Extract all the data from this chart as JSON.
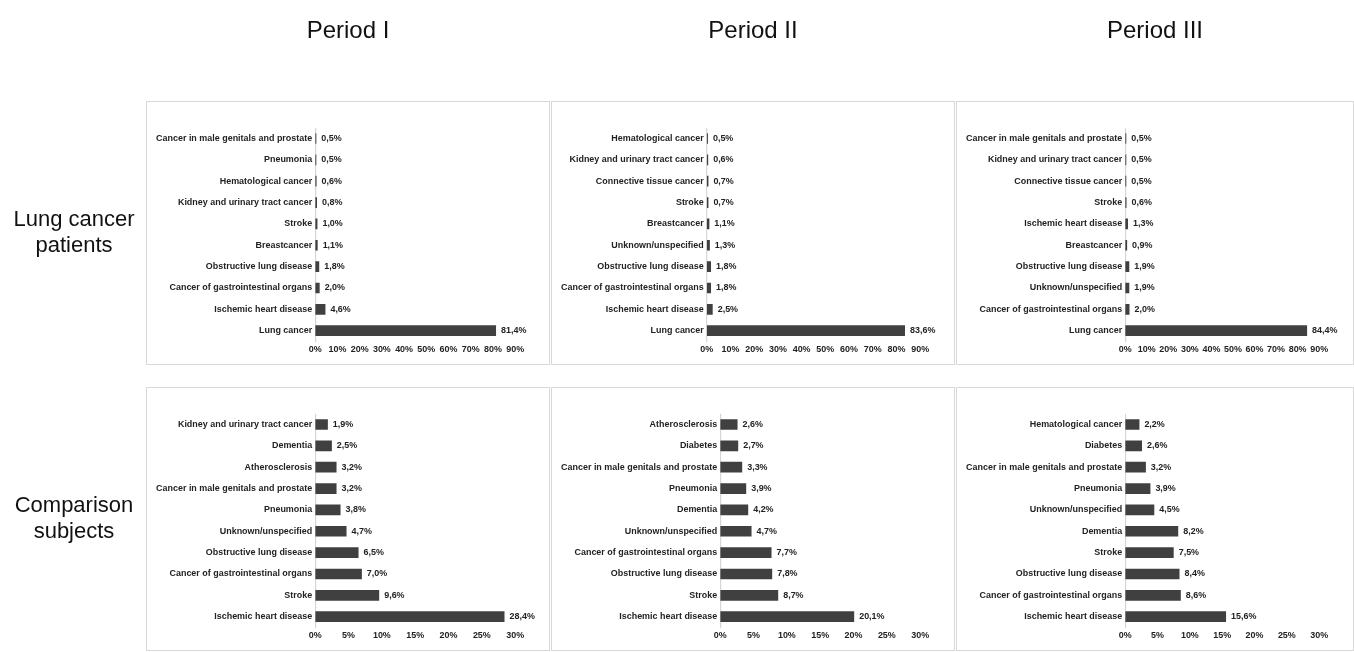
{
  "chart_data": [
    {
      "type": "bar",
      "orientation": "horizontal",
      "title": "Period I",
      "ylabel": "Lung cancer patients",
      "categories": [
        "Cancer in male genitals and prostate",
        "Pneumonia",
        "Hematological cancer",
        "Kidney and urinary tract cancer",
        "Stroke",
        "Breastcancer",
        "Obstructive lung disease",
        "Cancer of gastrointestinal organs",
        "Ischemic heart disease",
        "Lung cancer"
      ],
      "values": [
        0.5,
        0.5,
        0.6,
        0.8,
        1.0,
        1.1,
        1.8,
        2.0,
        4.6,
        81.4
      ],
      "value_labels": [
        "0,5%",
        "0,5%",
        "0,6%",
        "0,8%",
        "1,0%",
        "1,1%",
        "1,8%",
        "2,0%",
        "4,6%",
        "81,4%"
      ],
      "color": "#404040",
      "xlim": [
        0,
        90
      ],
      "xticks": [
        {
          "value": 0,
          "label": "0%"
        },
        {
          "value": 10,
          "label": "10%"
        },
        {
          "value": 20,
          "label": "20%"
        },
        {
          "value": 30,
          "label": "30%"
        },
        {
          "value": 40,
          "label": "40%"
        },
        {
          "value": 50,
          "label": "50%"
        },
        {
          "value": 60,
          "label": "60%"
        },
        {
          "value": 70,
          "label": "70%"
        },
        {
          "value": 80,
          "label": "80%"
        },
        {
          "value": 90,
          "label": "90%"
        }
      ],
      "grid": false,
      "legend": false
    },
    {
      "type": "bar",
      "orientation": "horizontal",
      "title": "Period II",
      "categories": [
        "Hematological cancer",
        "Kidney and urinary tract cancer",
        "Connective tissue cancer",
        "Stroke",
        "Breastcancer",
        "Unknown/unspecified",
        "Obstructive lung disease",
        "Cancer of gastrointestinal organs",
        "Ischemic heart disease",
        "Lung cancer"
      ],
      "values": [
        0.5,
        0.6,
        0.7,
        0.7,
        1.1,
        1.3,
        1.8,
        1.8,
        2.5,
        83.6
      ],
      "value_labels": [
        "0,5%",
        "0,6%",
        "0,7%",
        "0,7%",
        "1,1%",
        "1,3%",
        "1,8%",
        "1,8%",
        "2,5%",
        "83,6%"
      ],
      "color": "#404040",
      "xlim": [
        0,
        90
      ],
      "xticks": [
        {
          "value": 0,
          "label": "0%"
        },
        {
          "value": 10,
          "label": "10%"
        },
        {
          "value": 20,
          "label": "20%"
        },
        {
          "value": 30,
          "label": "30%"
        },
        {
          "value": 40,
          "label": "40%"
        },
        {
          "value": 50,
          "label": "50%"
        },
        {
          "value": 60,
          "label": "60%"
        },
        {
          "value": 70,
          "label": "70%"
        },
        {
          "value": 80,
          "label": "80%"
        },
        {
          "value": 90,
          "label": "90%"
        }
      ],
      "grid": false,
      "legend": false
    },
    {
      "type": "bar",
      "orientation": "horizontal",
      "title": "Period III",
      "categories": [
        "Cancer in male genitals and prostate",
        "Kidney and urinary tract cancer",
        "Connective tissue cancer",
        "Stroke",
        "Ischemic heart disease",
        "Breastcancer",
        "Obstructive lung disease",
        "Unknown/unspecified",
        "Cancer of gastrointestinal organs",
        "Lung cancer"
      ],
      "values": [
        0.5,
        0.5,
        0.5,
        0.6,
        1.3,
        0.9,
        1.9,
        1.9,
        2.0,
        84.4
      ],
      "value_labels": [
        "0,5%",
        "0,5%",
        "0,5%",
        "0,6%",
        "1,3%",
        "0,9%",
        "1,9%",
        "1,9%",
        "2,0%",
        "84,4%"
      ],
      "color": "#404040",
      "xlim": [
        0,
        90
      ],
      "xticks": [
        {
          "value": 0,
          "label": "0%"
        },
        {
          "value": 10,
          "label": "10%"
        },
        {
          "value": 20,
          "label": "20%"
        },
        {
          "value": 30,
          "label": "30%"
        },
        {
          "value": 40,
          "label": "40%"
        },
        {
          "value": 50,
          "label": "50%"
        },
        {
          "value": 60,
          "label": "60%"
        },
        {
          "value": 70,
          "label": "70%"
        },
        {
          "value": 80,
          "label": "80%"
        },
        {
          "value": 90,
          "label": "90%"
        }
      ],
      "grid": false,
      "legend": false
    },
    {
      "type": "bar",
      "orientation": "horizontal",
      "ylabel": "Comparison subjects",
      "categories": [
        "Kidney and urinary tract cancer",
        "Dementia",
        "Atherosclerosis",
        "Cancer in male genitals and prostate",
        "Pneumonia",
        "Unknown/unspecified",
        "Obstructive lung disease",
        "Cancer of gastrointestinal organs",
        "Stroke",
        "Ischemic heart disease"
      ],
      "values": [
        1.9,
        2.5,
        3.2,
        3.2,
        3.8,
        4.7,
        6.5,
        7.0,
        9.6,
        28.4
      ],
      "value_labels": [
        "1,9%",
        "2,5%",
        "3,2%",
        "3,2%",
        "3,8%",
        "4,7%",
        "6,5%",
        "7,0%",
        "9,6%",
        "28,4%"
      ],
      "color": "#404040",
      "xlim": [
        0,
        30
      ],
      "xticks": [
        {
          "value": 0,
          "label": "0%"
        },
        {
          "value": 5,
          "label": "5%"
        },
        {
          "value": 10,
          "label": "10%"
        },
        {
          "value": 15,
          "label": "15%"
        },
        {
          "value": 20,
          "label": "20%"
        },
        {
          "value": 25,
          "label": "25%"
        },
        {
          "value": 30,
          "label": "30%"
        }
      ],
      "grid": false,
      "legend": false
    },
    {
      "type": "bar",
      "orientation": "horizontal",
      "categories": [
        "Atherosclerosis",
        "Diabetes",
        "Cancer in male genitals and prostate",
        "Pneumonia",
        "Dementia",
        "Unknown/unspecified",
        "Cancer of gastrointestinal organs",
        "Obstructive lung disease",
        "Stroke",
        "Ischemic heart disease"
      ],
      "values": [
        2.6,
        2.7,
        3.3,
        3.9,
        4.2,
        4.7,
        7.7,
        7.8,
        8.7,
        20.1
      ],
      "value_labels": [
        "2,6%",
        "2,7%",
        "3,3%",
        "3,9%",
        "4,2%",
        "4,7%",
        "7,7%",
        "7,8%",
        "8,7%",
        "20,1%"
      ],
      "color": "#404040",
      "xlim": [
        0,
        30
      ],
      "xticks": [
        {
          "value": 0,
          "label": "0%"
        },
        {
          "value": 5,
          "label": "5%"
        },
        {
          "value": 10,
          "label": "10%"
        },
        {
          "value": 15,
          "label": "15%"
        },
        {
          "value": 20,
          "label": "20%"
        },
        {
          "value": 25,
          "label": "25%"
        },
        {
          "value": 30,
          "label": "30%"
        }
      ],
      "grid": false,
      "legend": false
    },
    {
      "type": "bar",
      "orientation": "horizontal",
      "categories": [
        "Hematological cancer",
        "Diabetes",
        "Cancer in male genitals and prostate",
        "Pneumonia",
        "Unknown/unspecified",
        "Dementia",
        "Stroke",
        "Obstructive lung disease",
        "Cancer of gastrointestinal organs",
        "Ischemic heart disease"
      ],
      "values": [
        2.2,
        2.6,
        3.2,
        3.9,
        4.5,
        8.2,
        7.5,
        8.4,
        8.6,
        15.6
      ],
      "value_labels": [
        "2,2%",
        "2,6%",
        "3,2%",
        "3,9%",
        "4,5%",
        "8,2%",
        "7,5%",
        "8,4%",
        "8,6%",
        "15,6%"
      ],
      "color": "#404040",
      "xlim": [
        0,
        30
      ],
      "xticks": [
        {
          "value": 0,
          "label": "0%"
        },
        {
          "value": 5,
          "label": "5%"
        },
        {
          "value": 10,
          "label": "10%"
        },
        {
          "value": 15,
          "label": "15%"
        },
        {
          "value": 20,
          "label": "20%"
        },
        {
          "value": 25,
          "label": "25%"
        },
        {
          "value": 30,
          "label": "30%"
        }
      ],
      "grid": false,
      "legend": false
    }
  ]
}
